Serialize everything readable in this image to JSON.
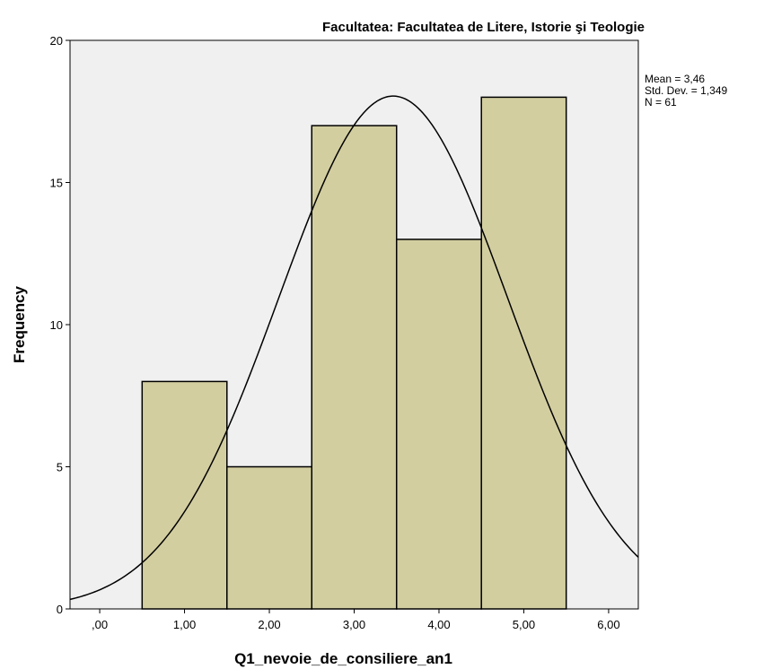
{
  "chart_data": {
    "type": "bar",
    "subtype": "histogram",
    "title": "Facultatea: Facultatea de Litere, Istorie şi Teologie",
    "xlabel": "Q1_nevoie_de_consiliere_an1",
    "ylabel": "Frequency",
    "bins": [
      {
        "from": 0.5,
        "to": 1.5,
        "count": 8
      },
      {
        "from": 1.5,
        "to": 2.5,
        "count": 5
      },
      {
        "from": 2.5,
        "to": 3.5,
        "count": 17
      },
      {
        "from": 3.5,
        "to": 4.5,
        "count": 13
      },
      {
        "from": 4.5,
        "to": 5.5,
        "count": 18
      }
    ],
    "xlim": [
      -0.35,
      6.35
    ],
    "ylim": [
      0,
      20
    ],
    "x_ticks": [
      0,
      1,
      2,
      3,
      4,
      5,
      6
    ],
    "x_tick_labels": [
      ",00",
      "1,00",
      "2,00",
      "3,00",
      "4,00",
      "5,00",
      "6,00"
    ],
    "y_ticks": [
      0,
      5,
      10,
      15,
      20
    ],
    "y_tick_labels": [
      "0",
      "5",
      "10",
      "15",
      "20"
    ],
    "normal_curve": {
      "mean": 3.46,
      "sd": 1.349,
      "n": 61,
      "bin_width": 1
    },
    "stats_labels": [
      "Mean = 3,46",
      "Std. Dev. = 1,349",
      "N = 61"
    ],
    "colors": {
      "bar_fill": "#d3cea0",
      "plot_bg": "#f0f0f0",
      "stroke": "#000000"
    }
  }
}
